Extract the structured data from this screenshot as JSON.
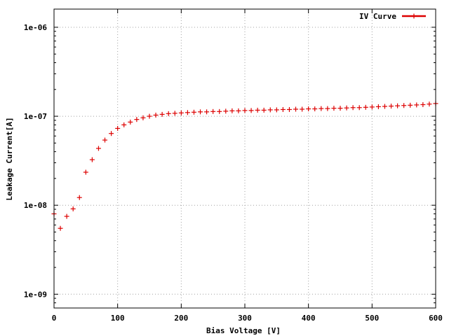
{
  "chart_data": {
    "type": "scatter",
    "title": "",
    "xlabel": "Bias Voltage [V]",
    "ylabel": "Leakage Current[A]",
    "xlim": [
      0,
      600
    ],
    "ylim": [
      7e-10,
      1.6e-06
    ],
    "yscale": "log",
    "grid": true,
    "legend_position": "top-right",
    "x_ticks": [
      0,
      100,
      200,
      300,
      400,
      500,
      600
    ],
    "x_tick_labels": [
      "0",
      "100",
      "200",
      "300",
      "400",
      "500",
      "600"
    ],
    "y_ticks": [
      1e-09,
      1e-08,
      1e-07,
      1e-06
    ],
    "y_tick_labels": [
      "1e-09",
      "1e-08",
      "1e-07",
      "1e-06"
    ],
    "series": [
      {
        "name": "IV Curve",
        "color": "#dd0000",
        "marker": "plus",
        "x": [
          0,
          10,
          20,
          30,
          40,
          50,
          60,
          70,
          80,
          90,
          100,
          110,
          120,
          130,
          140,
          150,
          160,
          170,
          180,
          190,
          200,
          210,
          220,
          230,
          240,
          250,
          260,
          270,
          280,
          290,
          300,
          310,
          320,
          330,
          340,
          350,
          360,
          370,
          380,
          390,
          400,
          410,
          420,
          430,
          440,
          450,
          460,
          470,
          480,
          490,
          500,
          510,
          520,
          530,
          540,
          550,
          560,
          570,
          580,
          590,
          600
        ],
        "y": [
          8e-09,
          5.5e-09,
          7.5e-09,
          9.1e-09,
          1.22e-08,
          2.35e-08,
          3.25e-08,
          4.35e-08,
          5.4e-08,
          6.4e-08,
          7.3e-08,
          8e-08,
          8.6e-08,
          9.2e-08,
          9.6e-08,
          1e-07,
          1.03e-07,
          1.05e-07,
          1.07e-07,
          1.08e-07,
          1.09e-07,
          1.1e-07,
          1.11e-07,
          1.12e-07,
          1.12e-07,
          1.13e-07,
          1.13e-07,
          1.14e-07,
          1.15e-07,
          1.15e-07,
          1.16e-07,
          1.16e-07,
          1.17e-07,
          1.17e-07,
          1.18e-07,
          1.18e-07,
          1.19e-07,
          1.19e-07,
          1.2e-07,
          1.2e-07,
          1.21e-07,
          1.21e-07,
          1.22e-07,
          1.22e-07,
          1.23e-07,
          1.23e-07,
          1.24e-07,
          1.25e-07,
          1.25e-07,
          1.26e-07,
          1.27e-07,
          1.28e-07,
          1.29e-07,
          1.3e-07,
          1.31e-07,
          1.32e-07,
          1.33e-07,
          1.34e-07,
          1.35e-07,
          1.37e-07,
          1.39e-07
        ]
      }
    ]
  }
}
